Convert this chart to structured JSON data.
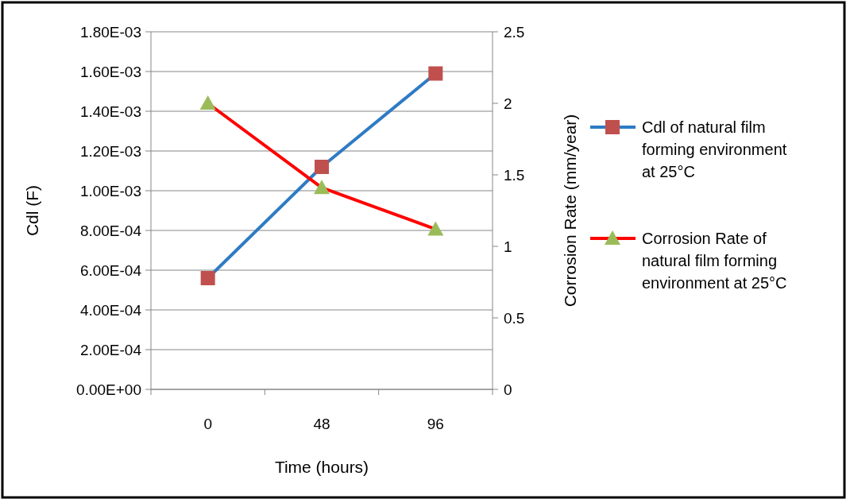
{
  "chart_data": {
    "type": "line",
    "xlabel": "Time (hours)",
    "ylabel": "Cdl (F)",
    "y2label": "Corrosion Rate (mm/year)",
    "categories": [
      "0",
      "48",
      "96"
    ],
    "series": [
      {
        "name": "Cdl of natural film forming environment at 25°C",
        "color": "#2e7bc4",
        "colors": [
          "#c0504d",
          "#c0504d",
          "#c0504d"
        ],
        "marker": "square",
        "values": [
          0.00056,
          0.00112,
          0.00159
        ]
      },
      {
        "name": "Corrosion Rate of natural film forming environment at 25°C",
        "color": "#ff0000",
        "colors": [
          "#9bbb59",
          "#9bbb59",
          "#9bbb59"
        ],
        "marker": "triangle",
        "axis": "y2",
        "values": [
          2.0,
          1.41,
          1.12
        ]
      }
    ],
    "ylim": [
      0,
      0.0018
    ],
    "yticks": [
      {
        "value": 0,
        "label": "0.00E+00"
      },
      {
        "value": 0.0002,
        "label": "2.00E-04"
      },
      {
        "value": 0.0004,
        "label": "4.00E-04"
      },
      {
        "value": 0.0006,
        "label": "6.00E-04"
      },
      {
        "value": 0.0008,
        "label": "8.00E-04"
      },
      {
        "value": 0.001,
        "label": "1.00E-03"
      },
      {
        "value": 0.0012,
        "label": "1.20E-03"
      },
      {
        "value": 0.0014,
        "label": "1.40E-03"
      },
      {
        "value": 0.0016,
        "label": "1.60E-03"
      },
      {
        "value": 0.0018,
        "label": "1.80E-03"
      }
    ],
    "y2lim": [
      0,
      2.5
    ],
    "y2ticks": [
      0,
      0.5,
      1,
      1.5,
      2,
      2.5
    ],
    "grid": "y",
    "legend": "right",
    "line_style": "solid"
  }
}
